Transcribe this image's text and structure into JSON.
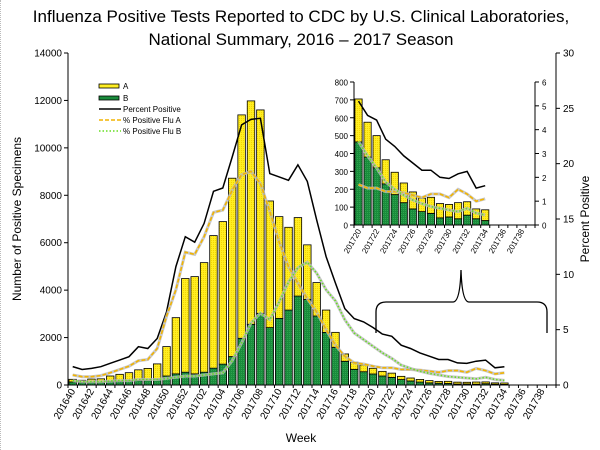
{
  "chart_data": {
    "type": "bar",
    "title_line1": "Influenza Positive Tests Reported to CDC by U.S. Clinical Laboratories,",
    "title_line2": "National Summary, 2016 – 2017 Season",
    "xlabel": "Week",
    "ylabel": "Number of Positive Specimens",
    "y2label": "Percent Positive",
    "ylim": [
      0,
      14000
    ],
    "y2lim": [
      0,
      30
    ],
    "yticks": [
      0,
      2000,
      4000,
      6000,
      8000,
      10000,
      12000,
      14000
    ],
    "y2ticks": [
      0,
      5,
      10,
      15,
      20,
      25,
      30
    ],
    "stacked": true,
    "categories": [
      "201640",
      "201641",
      "201642",
      "201643",
      "201644",
      "201645",
      "201646",
      "201647",
      "201648",
      "201649",
      "201650",
      "201651",
      "201652",
      "201701",
      "201702",
      "201703",
      "201704",
      "201705",
      "201706",
      "201707",
      "201708",
      "201709",
      "201710",
      "201711",
      "201712",
      "201713",
      "201714",
      "201715",
      "201716",
      "201717",
      "201718",
      "201719",
      "201720",
      "201721",
      "201722",
      "201723",
      "201724",
      "201725",
      "201726",
      "201727",
      "201728",
      "201729",
      "201730",
      "201731",
      "201732",
      "201733",
      "201734",
      "201735",
      "201736",
      "201737",
      "201738",
      "201739"
    ],
    "bar_series": [
      {
        "name": "A",
        "color": "#ffee22",
        "values": [
          110,
          90,
          130,
          140,
          230,
          290,
          340,
          440,
          490,
          640,
          1240,
          2370,
          3950,
          4100,
          4620,
          5590,
          6010,
          7520,
          9420,
          9420,
          8580,
          5340,
          4290,
          3490,
          3310,
          2300,
          1410,
          940,
          630,
          310,
          300,
          280,
          240,
          195,
          180,
          135,
          125,
          110,
          95,
          75,
          90,
          80,
          70,
          90,
          75,
          55,
          60,
          null,
          null,
          null,
          null,
          null
        ]
      },
      {
        "name": "B",
        "color": "#1a8c3c",
        "values": [
          130,
          110,
          120,
          120,
          150,
          160,
          180,
          200,
          210,
          250,
          380,
          470,
          540,
          470,
          540,
          710,
          880,
          1200,
          1970,
          2560,
          3020,
          2420,
          2810,
          3160,
          3750,
          3610,
          2910,
          2220,
          1590,
          1000,
          660,
          560,
          465,
          380,
          320,
          230,
          170,
          125,
          90,
          75,
          65,
          40,
          45,
          35,
          55,
          35,
          25,
          null,
          null,
          null,
          null,
          null
        ]
      }
    ],
    "line_series": [
      {
        "name": "Percent Positive",
        "color": "#000000",
        "style": "solid",
        "values": [
          1.66,
          1.4,
          1.5,
          1.65,
          1.96,
          2.25,
          2.56,
          3.46,
          3.3,
          4.2,
          6.6,
          10.7,
          13.4,
          12.9,
          14.6,
          17.5,
          17.8,
          20.6,
          23.5,
          24.0,
          24.1,
          19.1,
          18.8,
          18.5,
          19.9,
          18.4,
          14.9,
          11.6,
          9.2,
          6.9,
          6.0,
          5.7,
          5.2,
          4.6,
          4.4,
          3.6,
          3.3,
          2.9,
          2.6,
          2.3,
          2.3,
          2.0,
          1.95,
          2.15,
          2.25,
          1.55,
          1.65,
          null,
          null,
          null,
          null,
          null
        ]
      },
      {
        "name": "% Positive Flu A",
        "color": "#f2b400",
        "style": "dashed",
        "values": [
          0.9,
          0.75,
          0.75,
          0.85,
          1.1,
          1.4,
          1.7,
          2.2,
          2.3,
          3.3,
          6.2,
          8.6,
          12.0,
          11.8,
          13.4,
          15.6,
          15.8,
          17.6,
          19.0,
          19.3,
          18.2,
          15.7,
          12.9,
          10.7,
          9.2,
          7.8,
          6.6,
          5.0,
          3.6,
          2.6,
          2.0,
          1.9,
          1.7,
          1.55,
          1.55,
          1.4,
          1.4,
          1.35,
          1.25,
          1.15,
          1.3,
          1.3,
          1.15,
          1.5,
          1.3,
          1.0,
          1.1,
          null,
          null,
          null,
          null,
          null
        ]
      },
      {
        "name": "% Positive Flu B",
        "color": "#66dd22",
        "style": "dotted",
        "values": [
          0.4,
          0.3,
          0.3,
          0.3,
          0.35,
          0.4,
          0.4,
          0.5,
          0.5,
          0.5,
          0.6,
          0.7,
          0.8,
          0.8,
          0.9,
          1.0,
          1.1,
          2.2,
          3.8,
          5.6,
          6.5,
          5.9,
          7.5,
          9.3,
          10.6,
          11.1,
          10.1,
          8.6,
          7.6,
          5.9,
          4.7,
          4.1,
          3.5,
          2.9,
          2.4,
          1.8,
          1.5,
          1.25,
          1.05,
          0.9,
          0.77,
          0.7,
          0.63,
          0.56,
          0.7,
          0.5,
          0.42,
          null,
          null,
          null,
          null,
          null
        ]
      }
    ],
    "legend": [
      "A",
      "B",
      "Percent Positive",
      "% Positive Flu A",
      "% Positive Flu B"
    ],
    "legend_placement": "top-left",
    "grid": false,
    "inset": {
      "week_range": [
        "201720",
        "201739"
      ],
      "ylim": [
        0,
        800
      ],
      "yticks": [
        0,
        100,
        200,
        300,
        400,
        500,
        600,
        700,
        800
      ],
      "y2lim": [
        0,
        6
      ],
      "y2ticks": [
        0,
        1,
        2,
        3,
        4,
        5,
        6
      ]
    }
  }
}
